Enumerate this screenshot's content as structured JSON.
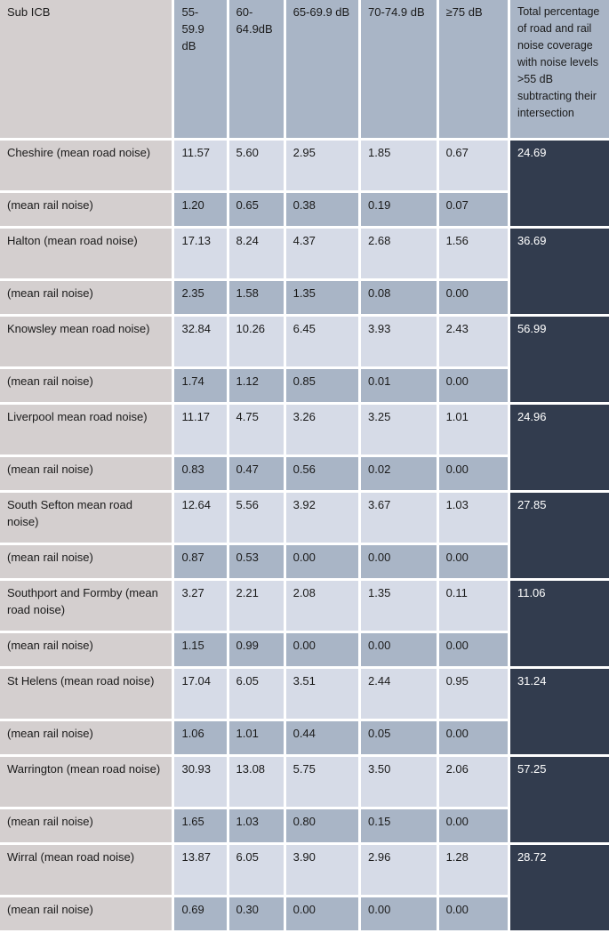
{
  "table": {
    "headers": {
      "sub_icb": "Sub ICB",
      "c1": "55-59.9 dB",
      "c2": "60-64.9dB",
      "c3": "65-69.9 dB",
      "c4": "70-74.9 dB",
      "c5": "≥75 dB",
      "total": "Total percentage of road and rail noise coverage with noise levels >55 dB subtracting their intersection"
    },
    "rows": [
      {
        "road_label": "Cheshire  (mean road noise)",
        "road": [
          "11.57",
          "5.60",
          "2.95",
          "1.85",
          "0.67"
        ],
        "rail_label": "(mean rail noise)",
        "rail": [
          "1.20",
          "0.65",
          "0.38",
          "0.19",
          "0.07"
        ],
        "total": "24.69"
      },
      {
        "road_label": "Halton (mean road noise)",
        "road": [
          "17.13",
          "8.24",
          "4.37",
          "2.68",
          "1.56"
        ],
        "rail_label": "(mean rail noise)",
        "rail": [
          "2.35",
          "1.58",
          "1.35",
          "0.08",
          "0.00"
        ],
        "total": "36.69"
      },
      {
        "road_label": "Knowsley  mean road noise)",
        "road": [
          "32.84",
          "10.26",
          "6.45",
          "3.93",
          "2.43"
        ],
        "rail_label": "(mean rail noise)",
        "rail": [
          "1.74",
          "1.12",
          "0.85",
          "0.01",
          "0.00"
        ],
        "total": "56.99"
      },
      {
        "road_label": "Liverpool  mean road noise)",
        "road": [
          "11.17",
          "4.75",
          "3.26",
          "3.25",
          "1.01"
        ],
        "rail_label": "(mean rail noise)",
        "rail": [
          "0.83",
          "0.47",
          "0.56",
          "0.02",
          "0.00"
        ],
        "total": "24.96"
      },
      {
        "road_label": "South Sefton mean road noise)",
        "road": [
          "12.64",
          "5.56",
          "3.92",
          "3.67",
          "1.03"
        ],
        "rail_label": "(mean rail noise)",
        "rail": [
          "0.87",
          "0.53",
          "0.00",
          "0.00",
          "0.00"
        ],
        "total": "27.85"
      },
      {
        "road_label": "Southport and Formby (mean road noise)",
        "road": [
          "3.27",
          "2.21",
          "2.08",
          "1.35",
          "0.11"
        ],
        "rail_label": "(mean rail noise)",
        "rail": [
          "1.15",
          "0.99",
          "0.00",
          "0.00",
          "0.00"
        ],
        "total": "11.06"
      },
      {
        "road_label": "St Helens (mean road noise)",
        "road": [
          "17.04",
          "6.05",
          "3.51",
          "2.44",
          "0.95"
        ],
        "rail_label": "(mean rail noise)",
        "rail": [
          "1.06",
          "1.01",
          "0.44",
          "0.05",
          "0.00"
        ],
        "total": "31.24"
      },
      {
        "road_label": "Warrington (mean road noise)",
        "road": [
          "30.93",
          "13.08",
          "5.75",
          "3.50",
          "2.06"
        ],
        "rail_label": "(mean rail noise)",
        "rail": [
          "1.65",
          "1.03",
          "0.80",
          "0.15",
          "0.00"
        ],
        "total": "57.25"
      },
      {
        "road_label": "Wirral (mean road noise)",
        "road": [
          "13.87",
          "6.05",
          "3.90",
          "2.96",
          "1.28"
        ],
        "rail_label": "(mean rail noise)",
        "rail": [
          "0.69",
          "0.30",
          "0.00",
          "0.00",
          "0.00"
        ],
        "total": "28.72"
      }
    ]
  }
}
